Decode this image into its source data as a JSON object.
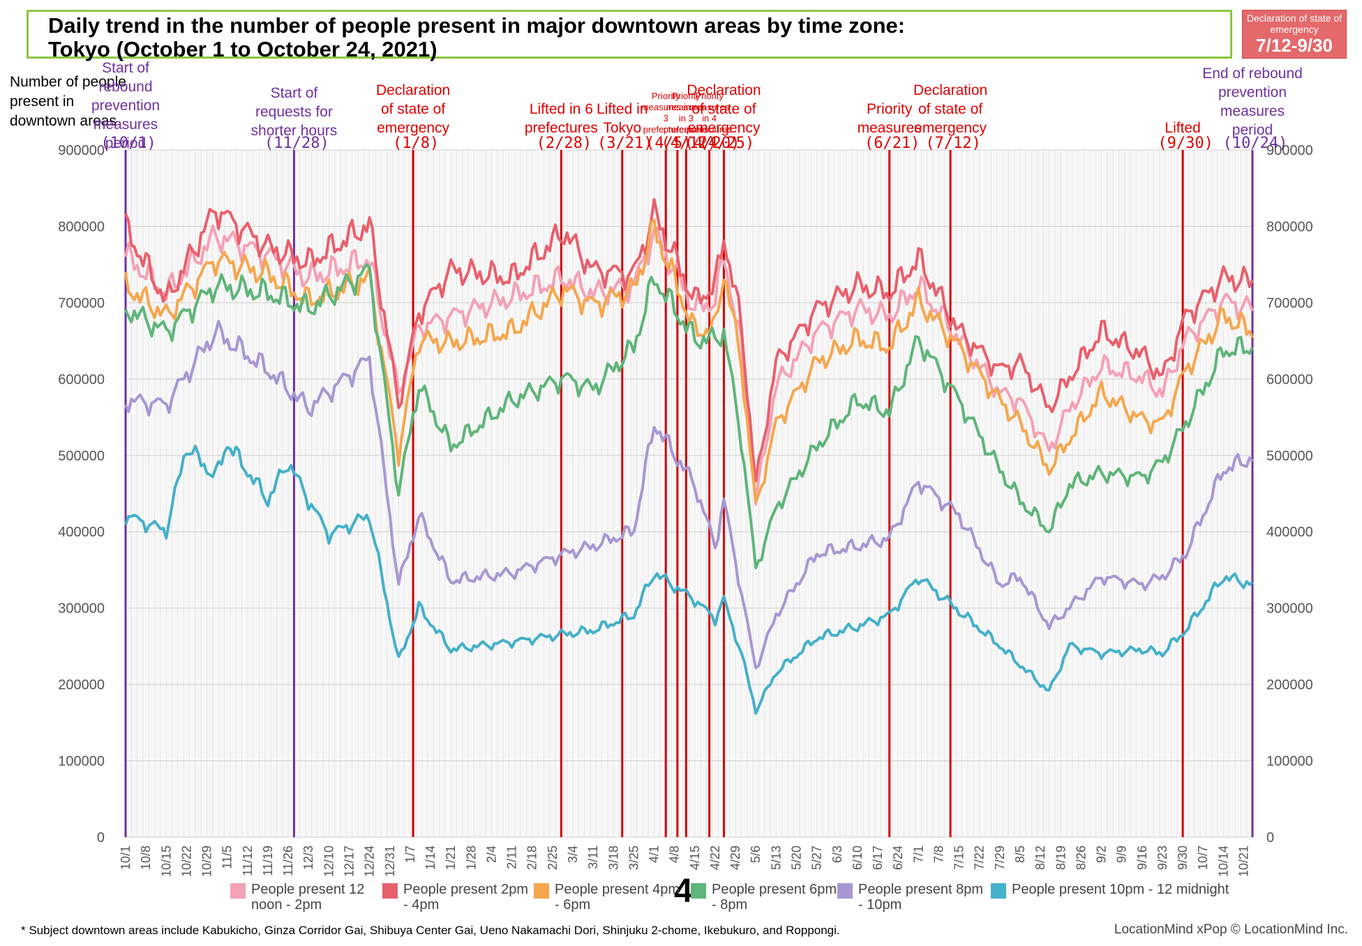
{
  "title": {
    "line1": "Daily trend in the number of people present in major downtown areas by time zone:",
    "line2": "Tokyo (October 1 to October 24, 2021)"
  },
  "badge": {
    "small": "Declaration of state of emergency",
    "big": "7/12-9/30"
  },
  "ylabel": "Number of people present in downtown areas",
  "page_number": "4",
  "footnote": "* Subject downtown areas include Kabukicho, Ginza Corridor Gai, Shibuya Center Gai, Ueno Nakamachi Dori, Shinjuku 2-chome, Ikebukuro, and Roppongi.",
  "brand": "LocationMind xPop © LocationMind Inc.",
  "colors": {
    "pink": "#f4a1b5",
    "red": "#e8606c",
    "orange": "#f5a74e",
    "green": "#5fb57a",
    "purple": "#a897d2",
    "cyan": "#45b0c9",
    "event_red": "#d00000",
    "event_purple": "#7030a0",
    "annot_red": "#e00000",
    "annot_purple": "#7030a0"
  },
  "chart_data": {
    "type": "line",
    "ylim": [
      0,
      900000
    ],
    "yticks": [
      "900000",
      "800000",
      "700000",
      "600000",
      "500000",
      "400000",
      "300000",
      "200000",
      "100000",
      "0"
    ],
    "x_start": "10/1 (2020)",
    "x_end": "10/24 (2021)",
    "xtick_labels": [
      "10/1",
      "10/8",
      "10/15",
      "10/22",
      "10/29",
      "11/5",
      "11/12",
      "11/19",
      "11/26",
      "12/3",
      "12/10",
      "12/17",
      "12/24",
      "12/31",
      "1/7",
      "1/14",
      "1/21",
      "1/28",
      "2/4",
      "2/11",
      "2/18",
      "2/25",
      "3/4",
      "3/11",
      "3/18",
      "3/25",
      "4/1",
      "4/8",
      "4/15",
      "4/22",
      "4/29",
      "5/6",
      "5/13",
      "5/20",
      "5/27",
      "6/3",
      "6/10",
      "6/17",
      "6/24",
      "7/1",
      "7/8",
      "7/15",
      "7/22",
      "7/29",
      "8/5",
      "8/12",
      "8/19",
      "8/26",
      "9/2",
      "9/9",
      "9/16",
      "9/23",
      "9/30",
      "10/7",
      "10/14",
      "10/21"
    ],
    "grid": true,
    "series": [
      {
        "name": "People present 12 noon - 2pm",
        "color_key": "pink",
        "points": [
          [
            "10/1",
            760000
          ],
          [
            "10/15",
            710000
          ],
          [
            "11/1",
            785000
          ],
          [
            "11/19",
            760000
          ],
          [
            "12/3",
            730000
          ],
          [
            "12/24",
            755000
          ],
          [
            "1/3",
            580000
          ],
          [
            "1/10",
            665000
          ],
          [
            "1/21",
            680000
          ],
          [
            "2/11",
            705000
          ],
          [
            "3/1",
            730000
          ],
          [
            "3/11",
            710000
          ],
          [
            "3/25",
            720000
          ],
          [
            "4/1",
            790000
          ],
          [
            "4/15",
            690000
          ],
          [
            "4/22",
            700000
          ],
          [
            "4/25",
            760000
          ],
          [
            "5/1",
            640000
          ],
          [
            "5/6",
            440000
          ],
          [
            "5/13",
            590000
          ],
          [
            "5/27",
            660000
          ],
          [
            "6/10",
            690000
          ],
          [
            "6/21",
            680000
          ],
          [
            "7/1",
            720000
          ],
          [
            "7/15",
            650000
          ],
          [
            "7/29",
            580000
          ],
          [
            "8/5",
            570000
          ],
          [
            "8/15",
            505000
          ],
          [
            "8/22",
            560000
          ],
          [
            "9/2",
            615000
          ],
          [
            "9/16",
            600000
          ],
          [
            "9/23",
            580000
          ],
          [
            "10/1",
            650000
          ],
          [
            "10/14",
            700000
          ],
          [
            "10/24",
            690000
          ]
        ]
      },
      {
        "name": "People present 2pm - 4pm",
        "color_key": "red",
        "points": [
          [
            "10/1",
            795000
          ],
          [
            "10/15",
            700000
          ],
          [
            "11/1",
            820000
          ],
          [
            "11/19",
            770000
          ],
          [
            "12/3",
            750000
          ],
          [
            "12/24",
            800000
          ],
          [
            "1/3",
            565000
          ],
          [
            "1/10",
            685000
          ],
          [
            "1/21",
            740000
          ],
          [
            "2/11",
            730000
          ],
          [
            "3/1",
            790000
          ],
          [
            "3/11",
            740000
          ],
          [
            "3/25",
            735000
          ],
          [
            "4/1",
            815000
          ],
          [
            "4/15",
            700000
          ],
          [
            "4/22",
            720000
          ],
          [
            "4/25",
            785000
          ],
          [
            "5/1",
            670000
          ],
          [
            "5/6",
            460000
          ],
          [
            "5/13",
            620000
          ],
          [
            "5/27",
            690000
          ],
          [
            "6/10",
            720000
          ],
          [
            "6/21",
            710000
          ],
          [
            "7/1",
            755000
          ],
          [
            "7/15",
            660000
          ],
          [
            "7/29",
            610000
          ],
          [
            "8/5",
            620000
          ],
          [
            "8/15",
            560000
          ],
          [
            "8/22",
            600000
          ],
          [
            "9/2",
            660000
          ],
          [
            "9/16",
            630000
          ],
          [
            "9/23",
            600000
          ],
          [
            "10/1",
            680000
          ],
          [
            "10/14",
            730000
          ],
          [
            "10/24",
            725000
          ]
        ]
      },
      {
        "name": "People present 4pm - 6pm",
        "color_key": "orange",
        "points": [
          [
            "10/1",
            720000
          ],
          [
            "10/15",
            680000
          ],
          [
            "11/1",
            755000
          ],
          [
            "11/19",
            735000
          ],
          [
            "12/3",
            700000
          ],
          [
            "12/24",
            730000
          ],
          [
            "1/3",
            500000
          ],
          [
            "1/10",
            650000
          ],
          [
            "1/21",
            645000
          ],
          [
            "2/11",
            660000
          ],
          [
            "3/1",
            715000
          ],
          [
            "3/11",
            695000
          ],
          [
            "3/25",
            715000
          ],
          [
            "4/1",
            795000
          ],
          [
            "4/15",
            660000
          ],
          [
            "4/22",
            665000
          ],
          [
            "4/25",
            740000
          ],
          [
            "5/1",
            620000
          ],
          [
            "5/6",
            430000
          ],
          [
            "5/13",
            540000
          ],
          [
            "5/27",
            620000
          ],
          [
            "6/10",
            650000
          ],
          [
            "6/21",
            640000
          ],
          [
            "7/1",
            700000
          ],
          [
            "7/15",
            640000
          ],
          [
            "7/29",
            570000
          ],
          [
            "8/5",
            540000
          ],
          [
            "8/15",
            480000
          ],
          [
            "8/22",
            520000
          ],
          [
            "9/2",
            580000
          ],
          [
            "9/16",
            545000
          ],
          [
            "9/23",
            540000
          ],
          [
            "10/1",
            610000
          ],
          [
            "10/14",
            680000
          ],
          [
            "10/24",
            660000
          ]
        ]
      },
      {
        "name": "People present 6pm - 8pm",
        "color_key": "green",
        "points": [
          [
            "10/1",
            690000
          ],
          [
            "10/15",
            660000
          ],
          [
            "11/1",
            720000
          ],
          [
            "11/19",
            710000
          ],
          [
            "12/3",
            690000
          ],
          [
            "12/24",
            740000
          ],
          [
            "1/3",
            450000
          ],
          [
            "1/10",
            590000
          ],
          [
            "1/21",
            510000
          ],
          [
            "2/11",
            570000
          ],
          [
            "3/1",
            600000
          ],
          [
            "3/11",
            585000
          ],
          [
            "3/25",
            640000
          ],
          [
            "4/1",
            730000
          ],
          [
            "4/15",
            650000
          ],
          [
            "4/22",
            650000
          ],
          [
            "4/25",
            660000
          ],
          [
            "5/1",
            520000
          ],
          [
            "5/6",
            350000
          ],
          [
            "5/13",
            430000
          ],
          [
            "5/27",
            510000
          ],
          [
            "6/10",
            570000
          ],
          [
            "6/21",
            555000
          ],
          [
            "7/1",
            650000
          ],
          [
            "7/15",
            570000
          ],
          [
            "7/29",
            480000
          ],
          [
            "8/5",
            440000
          ],
          [
            "8/15",
            400000
          ],
          [
            "8/22",
            460000
          ],
          [
            "9/2",
            475000
          ],
          [
            "9/16",
            470000
          ],
          [
            "9/23",
            490000
          ],
          [
            "10/1",
            540000
          ],
          [
            "10/14",
            635000
          ],
          [
            "10/24",
            640000
          ]
        ]
      },
      {
        "name": "People present 8pm - 10pm",
        "color_key": "purple",
        "points": [
          [
            "10/1",
            570000
          ],
          [
            "10/15",
            565000
          ],
          [
            "11/1",
            660000
          ],
          [
            "11/19",
            610000
          ],
          [
            "12/3",
            560000
          ],
          [
            "12/24",
            625000
          ],
          [
            "1/3",
            330000
          ],
          [
            "1/10",
            420000
          ],
          [
            "1/21",
            335000
          ],
          [
            "2/11",
            345000
          ],
          [
            "3/1",
            370000
          ],
          [
            "3/11",
            380000
          ],
          [
            "3/25",
            400000
          ],
          [
            "4/1",
            540000
          ],
          [
            "4/15",
            460000
          ],
          [
            "4/22",
            380000
          ],
          [
            "4/25",
            440000
          ],
          [
            "5/1",
            320000
          ],
          [
            "5/6",
            220000
          ],
          [
            "5/13",
            290000
          ],
          [
            "5/27",
            370000
          ],
          [
            "6/10",
            380000
          ],
          [
            "6/21",
            390000
          ],
          [
            "7/1",
            465000
          ],
          [
            "7/15",
            420000
          ],
          [
            "7/29",
            330000
          ],
          [
            "8/5",
            340000
          ],
          [
            "8/15",
            275000
          ],
          [
            "8/22",
            300000
          ],
          [
            "9/2",
            340000
          ],
          [
            "9/16",
            330000
          ],
          [
            "9/23",
            340000
          ],
          [
            "10/1",
            370000
          ],
          [
            "10/14",
            480000
          ],
          [
            "10/24",
            495000
          ]
        ]
      },
      {
        "name": "People present 10pm - 12 midnight",
        "color_key": "cyan",
        "points": [
          [
            "10/1",
            420000
          ],
          [
            "10/15",
            400000
          ],
          [
            "10/22",
            510000
          ],
          [
            "11/1",
            470000
          ],
          [
            "11/5",
            515000
          ],
          [
            "11/19",
            440000
          ],
          [
            "11/26",
            490000
          ],
          [
            "12/3",
            440000
          ],
          [
            "12/10",
            395000
          ],
          [
            "12/24",
            420000
          ],
          [
            "1/3",
            230000
          ],
          [
            "1/10",
            300000
          ],
          [
            "1/21",
            245000
          ],
          [
            "2/11",
            255000
          ],
          [
            "3/1",
            265000
          ],
          [
            "3/11",
            270000
          ],
          [
            "3/25",
            290000
          ],
          [
            "4/1",
            345000
          ],
          [
            "4/15",
            310000
          ],
          [
            "4/22",
            285000
          ],
          [
            "4/25",
            310000
          ],
          [
            "5/1",
            240000
          ],
          [
            "5/6",
            165000
          ],
          [
            "5/13",
            215000
          ],
          [
            "5/27",
            260000
          ],
          [
            "6/10",
            275000
          ],
          [
            "6/21",
            290000
          ],
          [
            "7/1",
            340000
          ],
          [
            "7/15",
            295000
          ],
          [
            "7/29",
            250000
          ],
          [
            "8/5",
            225000
          ],
          [
            "8/15",
            190000
          ],
          [
            "8/22",
            250000
          ],
          [
            "9/2",
            240000
          ],
          [
            "9/16",
            245000
          ],
          [
            "9/23",
            240000
          ],
          [
            "10/1",
            270000
          ],
          [
            "10/14",
            340000
          ],
          [
            "10/24",
            330000
          ]
        ]
      }
    ],
    "events": [
      {
        "date": "11/28",
        "color_key": "event_purple",
        "lines": [
          "Start of",
          "requests for",
          "shorter hours"
        ],
        "date_label": "(11/28)",
        "text_color_key": "annot_purple"
      },
      {
        "date": "1/8",
        "color_key": "event_red",
        "lines": [
          "Declaration",
          "of state of",
          "emergency"
        ],
        "date_label": "(1/8)",
        "text_color_key": "annot_red"
      },
      {
        "date": "2/28",
        "color_key": "event_red",
        "lines": [
          "Lifted in 6",
          "prefectures"
        ],
        "date_label": "(2/28)",
        "text_color_key": "annot_red"
      },
      {
        "date": "3/21",
        "color_key": "event_red",
        "lines": [
          "Lifted in",
          "Tokyo"
        ],
        "date_label": "(3/21)",
        "text_color_key": "annot_red"
      },
      {
        "date": "4/5",
        "color_key": "event_red",
        "lines": [
          "Priority",
          "measures in",
          "3",
          "prefectures"
        ],
        "date_label": "(4/5)",
        "text_color_key": "annot_red"
      },
      {
        "date": "4/9",
        "color_key": "event_red",
        "lines": [],
        "date_label": "",
        "text_color_key": "annot_red"
      },
      {
        "date": "4/12",
        "color_key": "event_red",
        "lines": [
          "Priority",
          "measures",
          "in 3",
          "prefectures"
        ],
        "date_label": "(4/12)",
        "text_color_key": "annot_red"
      },
      {
        "date": "4/20",
        "color_key": "event_red",
        "lines": [
          "Priority",
          "measures",
          "in 4",
          "prefectures"
        ],
        "date_label": "(4/20)",
        "text_color_key": "annot_red"
      },
      {
        "date": "4/25",
        "color_key": "event_red",
        "lines": [
          "Declaration",
          "of state of",
          "emergency"
        ],
        "date_label": "(4/25)",
        "text_color_key": "annot_red"
      },
      {
        "date": "6/21",
        "color_key": "event_red",
        "lines": [
          "Priority",
          "measures"
        ],
        "date_label": "(6/21)",
        "text_color_key": "annot_red"
      },
      {
        "date": "7/12",
        "color_key": "event_red",
        "lines": [
          "Declaration",
          "of state of",
          "emergency"
        ],
        "date_label": "(7/12)",
        "text_color_key": "annot_red"
      },
      {
        "date": "9/30",
        "color_key": "event_red",
        "lines": [
          "Lifted"
        ],
        "date_label": "(9/30)",
        "text_color_key": "annot_red"
      },
      {
        "date": "10/1",
        "color_key": "event_purple",
        "lines": [
          "Start of",
          "rebound",
          "prevention",
          "measures",
          "period"
        ],
        "date_label": "(10/1)",
        "text_color_key": "annot_purple"
      },
      {
        "date": "10/24",
        "color_key": "event_purple",
        "lines": [
          "End of rebound",
          "prevention",
          "measures",
          "period"
        ],
        "date_label": "(10/24)",
        "text_color_key": "annot_purple"
      }
    ]
  }
}
